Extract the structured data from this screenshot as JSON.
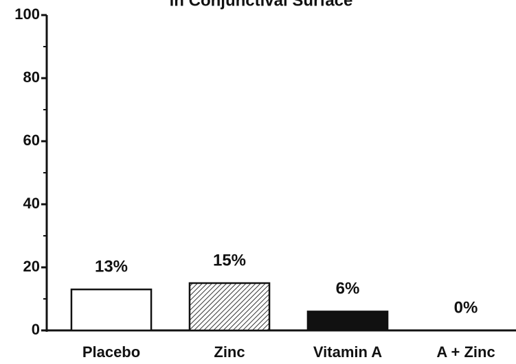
{
  "chart_data": {
    "type": "bar",
    "title": "in Conjunctival Surface",
    "categories": [
      "Placebo",
      "Zinc",
      "Vitamin A",
      "A + Zinc"
    ],
    "values": [
      13,
      15,
      6,
      0
    ],
    "value_labels": [
      "13%",
      "15%",
      "6%",
      "0%"
    ],
    "colors": [
      "#ffffff",
      "#ffffff",
      "#111111",
      "#ffffff"
    ],
    "hatch": [
      false,
      true,
      false,
      false
    ],
    "ylim": [
      0,
      100
    ],
    "yticks": [
      0,
      20,
      40,
      60,
      80,
      100
    ],
    "minor_yticks": [
      10,
      30,
      50,
      70,
      90
    ]
  }
}
